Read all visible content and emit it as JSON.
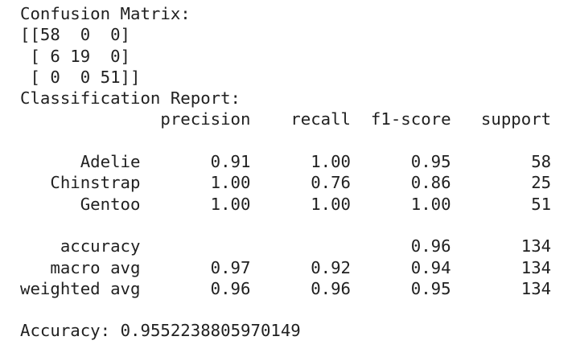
{
  "console": {
    "confusion_matrix": {
      "label": "Confusion Matrix:",
      "rows": [
        [
          58,
          0,
          0
        ],
        [
          6,
          19,
          0
        ],
        [
          0,
          0,
          51
        ]
      ]
    },
    "classification_report": {
      "label": "Classification Report:",
      "columns": [
        "precision",
        "recall",
        "f1-score",
        "support"
      ],
      "class_rows": [
        {
          "name": "Adelie",
          "precision": "0.91",
          "recall": "1.00",
          "f1_score": "0.95",
          "support": "58"
        },
        {
          "name": "Chinstrap",
          "precision": "1.00",
          "recall": "0.76",
          "f1_score": "0.86",
          "support": "25"
        },
        {
          "name": "Gentoo",
          "precision": "1.00",
          "recall": "1.00",
          "f1_score": "1.00",
          "support": "51"
        }
      ],
      "summary_rows": [
        {
          "name": "accuracy",
          "precision": "",
          "recall": "",
          "f1_score": "0.96",
          "support": "134"
        },
        {
          "name": "macro avg",
          "precision": "0.97",
          "recall": "0.92",
          "f1_score": "0.94",
          "support": "134"
        },
        {
          "name": "weighted avg",
          "precision": "0.96",
          "recall": "0.96",
          "f1_score": "0.95",
          "support": "134"
        }
      ]
    },
    "accuracy_summary": {
      "label": "Accuracy:",
      "value": "0.9552238805970149"
    }
  },
  "colors": {
    "text": "#212121",
    "background": "#ffffff"
  }
}
